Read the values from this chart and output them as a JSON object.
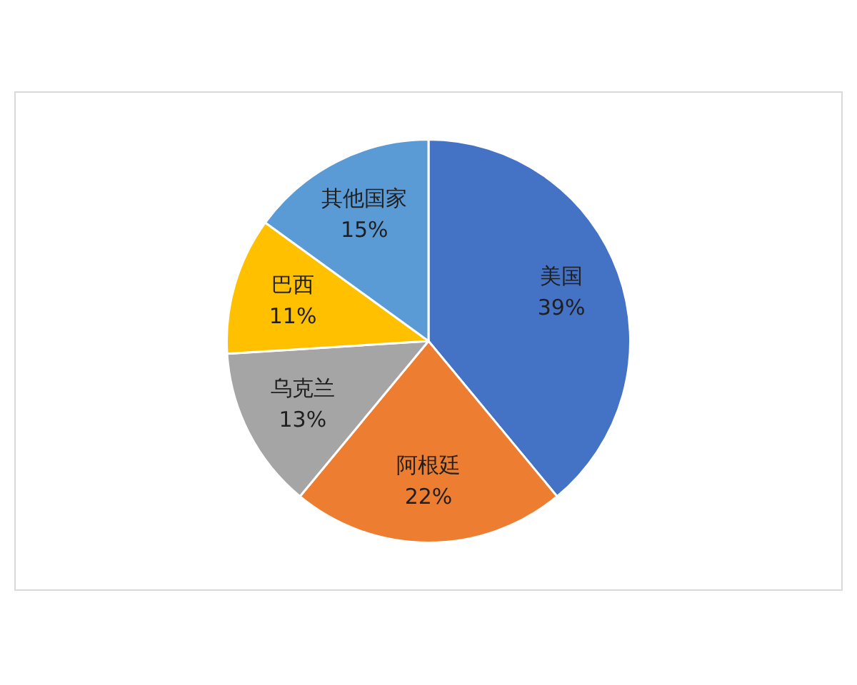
{
  "chart_data": {
    "type": "pie",
    "categories": [
      "美国",
      "阿根廷",
      "乌克兰",
      "巴西",
      "其他国家"
    ],
    "values": [
      39,
      22,
      13,
      11,
      15
    ],
    "colors": [
      "#4472c4",
      "#ed7d31",
      "#a5a5a5",
      "#ffc000",
      "#5b9bd5"
    ],
    "value_labels": [
      "39%",
      "22%",
      "13%",
      "11%",
      "15%"
    ]
  }
}
